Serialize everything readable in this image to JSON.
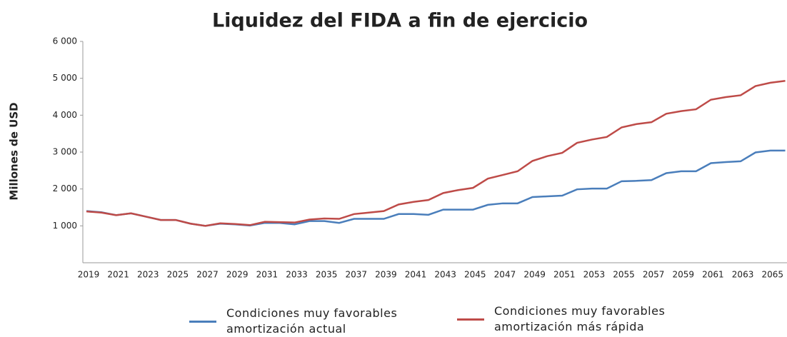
{
  "chart_data": {
    "type": "line",
    "title": "Liquidez del FIDA a fin de ejercicio",
    "y_label": "Millones de USD",
    "categories": [
      "2019",
      null,
      "2021",
      null,
      "2023",
      null,
      "2025",
      null,
      "2027",
      null,
      "2029",
      null,
      "2031",
      null,
      "2033",
      null,
      "2035",
      null,
      "2037",
      null,
      "2039",
      null,
      "2041",
      null,
      "2043",
      null,
      "2045",
      null,
      "2047",
      null,
      "2049",
      null,
      "2051",
      null,
      "2053",
      null,
      "2055",
      null,
      "2057",
      null,
      "2059",
      null,
      "2061",
      null,
      "2063",
      null,
      "2065",
      null
    ],
    "series": [
      {
        "name": "Condiciones muy favorables amortización actual",
        "color": "#4a7ebb",
        "values": [
          1400,
          1370,
          1290,
          1340,
          1250,
          1160,
          1160,
          1060,
          1000,
          1060,
          1040,
          1010,
          1080,
          1080,
          1040,
          1130,
          1130,
          1080,
          1190,
          1190,
          1190,
          1320,
          1320,
          1300,
          1440,
          1440,
          1440,
          1570,
          1610,
          1610,
          1780,
          1800,
          1820,
          1990,
          2010,
          2010,
          2210,
          2220,
          2240,
          2430,
          2480,
          2480,
          2700,
          2730,
          2750,
          2990,
          3040,
          3040
        ]
      },
      {
        "name": "Condiciones muy favorables amortización más rápida",
        "color": "#be4b48",
        "values": [
          1390,
          1360,
          1290,
          1340,
          1250,
          1160,
          1160,
          1060,
          1000,
          1070,
          1050,
          1020,
          1110,
          1100,
          1090,
          1170,
          1200,
          1190,
          1320,
          1360,
          1400,
          1580,
          1650,
          1700,
          1890,
          1970,
          2030,
          2280,
          2380,
          2480,
          2760,
          2890,
          2980,
          3250,
          3340,
          3410,
          3670,
          3760,
          3810,
          4040,
          4110,
          4160,
          4420,
          4490,
          4540,
          4790,
          4880,
          4930
        ]
      }
    ],
    "ylim": [
      0,
      6000
    ],
    "yticks": [
      {
        "value": 1000,
        "label": "1 000"
      },
      {
        "value": 2000,
        "label": "2 000"
      },
      {
        "value": 3000,
        "label": "3 000"
      },
      {
        "value": 4000,
        "label": "4 000"
      },
      {
        "value": 5000,
        "label": "5 000"
      },
      {
        "value": 6000,
        "label": "6 000"
      }
    ],
    "legend": "bottom"
  }
}
